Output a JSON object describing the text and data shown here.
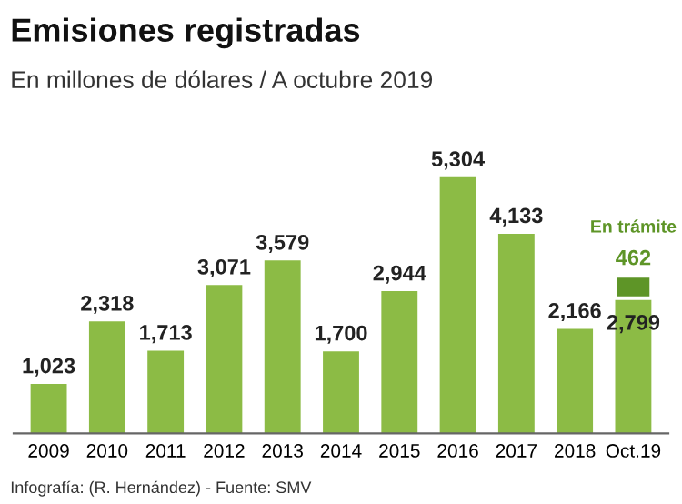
{
  "chart_data": {
    "type": "bar",
    "title": "Emisiones registradas",
    "subtitle": "En millones de dólares / A octubre 2019",
    "categories": [
      "2009",
      "2010",
      "2011",
      "2012",
      "2013",
      "2014",
      "2015",
      "2016",
      "2017",
      "2018",
      "Oct.19"
    ],
    "stacked": true,
    "series": [
      {
        "color": "#8cbb45",
        "values": [
          1023,
          2318,
          1713,
          3071,
          3579,
          1700,
          2944,
          5304,
          4133,
          2166,
          2799
        ],
        "value_labels": [
          "1,023",
          "2,318",
          "1,713",
          "3,071",
          "3,579",
          "1,700",
          "2,944",
          "5,304",
          "4,133",
          "2,166",
          "2,799"
        ]
      },
      {
        "name": "En trámite",
        "color": "#5e9527",
        "values": [
          null,
          null,
          null,
          null,
          null,
          null,
          null,
          null,
          null,
          null,
          462
        ],
        "value_labels": [
          null,
          null,
          null,
          null,
          null,
          null,
          null,
          null,
          null,
          null,
          "462"
        ]
      }
    ],
    "annotations": [
      "Infografía: (R. Hernández) - Fuente: SMV"
    ],
    "grid": false,
    "legend": false
  }
}
